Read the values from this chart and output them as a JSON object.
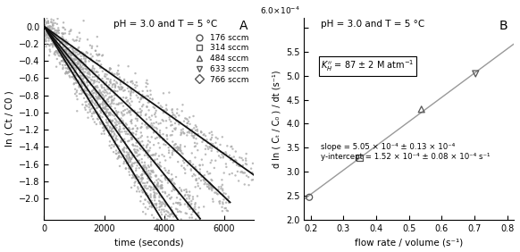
{
  "panel_A": {
    "label": "A",
    "title": "pH = 3.0 and T = 5 °C",
    "xlabel": "time (seconds)",
    "ylabel": "ln ( Ct / C0 )",
    "xlim": [
      0,
      7000
    ],
    "ylim": [
      -2.25,
      0.1
    ],
    "yticks": [
      0.0,
      -0.2,
      -0.4,
      -0.6,
      -0.8,
      -1.0,
      -1.2,
      -1.4,
      -1.6,
      -1.8,
      -2.0
    ],
    "xticks": [
      0,
      2000,
      4000,
      6000
    ],
    "slopes": [
      -0.000247,
      -0.00033,
      -0.00043,
      -0.000504,
      -0.000573
    ],
    "markers": [
      "o",
      "s",
      "^",
      "v",
      "D"
    ],
    "legend_labels": [
      "176 sccm",
      "314 sccm",
      "484 sccm",
      "633 sccm",
      "766 sccm"
    ],
    "data_color": "#aaaaaa",
    "fit_color": "#111111",
    "n_points": 400,
    "noise_std": 0.1,
    "t_max_all": 7000,
    "t_max_each": [
      7000,
      6200,
      5200,
      4600,
      4200
    ]
  },
  "panel_B": {
    "label": "B",
    "title": "pH = 3.0 and T = 5 °C",
    "xlabel": "flow rate / volume (s⁻¹)",
    "ylabel": "d ln ( Cₜ / C₀ ) / dt (s⁻¹)",
    "xlim": [
      0.18,
      0.82
    ],
    "ylim": [
      0.0002,
      0.00062
    ],
    "xticks": [
      0.2,
      0.3,
      0.4,
      0.5,
      0.6,
      0.7,
      0.8
    ],
    "ytick_vals": [
      0.0002,
      0.00025,
      0.0003,
      0.00035,
      0.0004,
      0.00045,
      0.0005,
      0.00055,
      0.0006
    ],
    "ytick_labels": [
      "2.0",
      "2.5",
      "3.0",
      "3.5",
      "4.0",
      "4.5",
      "5.0",
      "5.5",
      ""
    ],
    "x_data": [
      0.196,
      0.349,
      0.538,
      0.703
    ],
    "y_data": [
      0.000247,
      0.00033,
      0.00043,
      0.000504
    ],
    "markers": [
      "o",
      "s",
      "^",
      "v"
    ],
    "slope": 0.000505,
    "intercept": 0.000152,
    "fit_color": "#999999",
    "data_color": "#555555",
    "kh_box_text": "$K_{H}^{\\prime\\prime}$ = 87 ± 2 M atm$^{-1}$",
    "slope_text": "slope = 5.05 × 10⁻⁴ ± 0.13 × 10⁻⁴",
    "yint_text": "y-intercept = 1.52 × 10⁻⁴ ± 0.08 × 10⁻⁴ s⁻¹",
    "yaxis_prefix": "6.0×10⁻⁴"
  }
}
